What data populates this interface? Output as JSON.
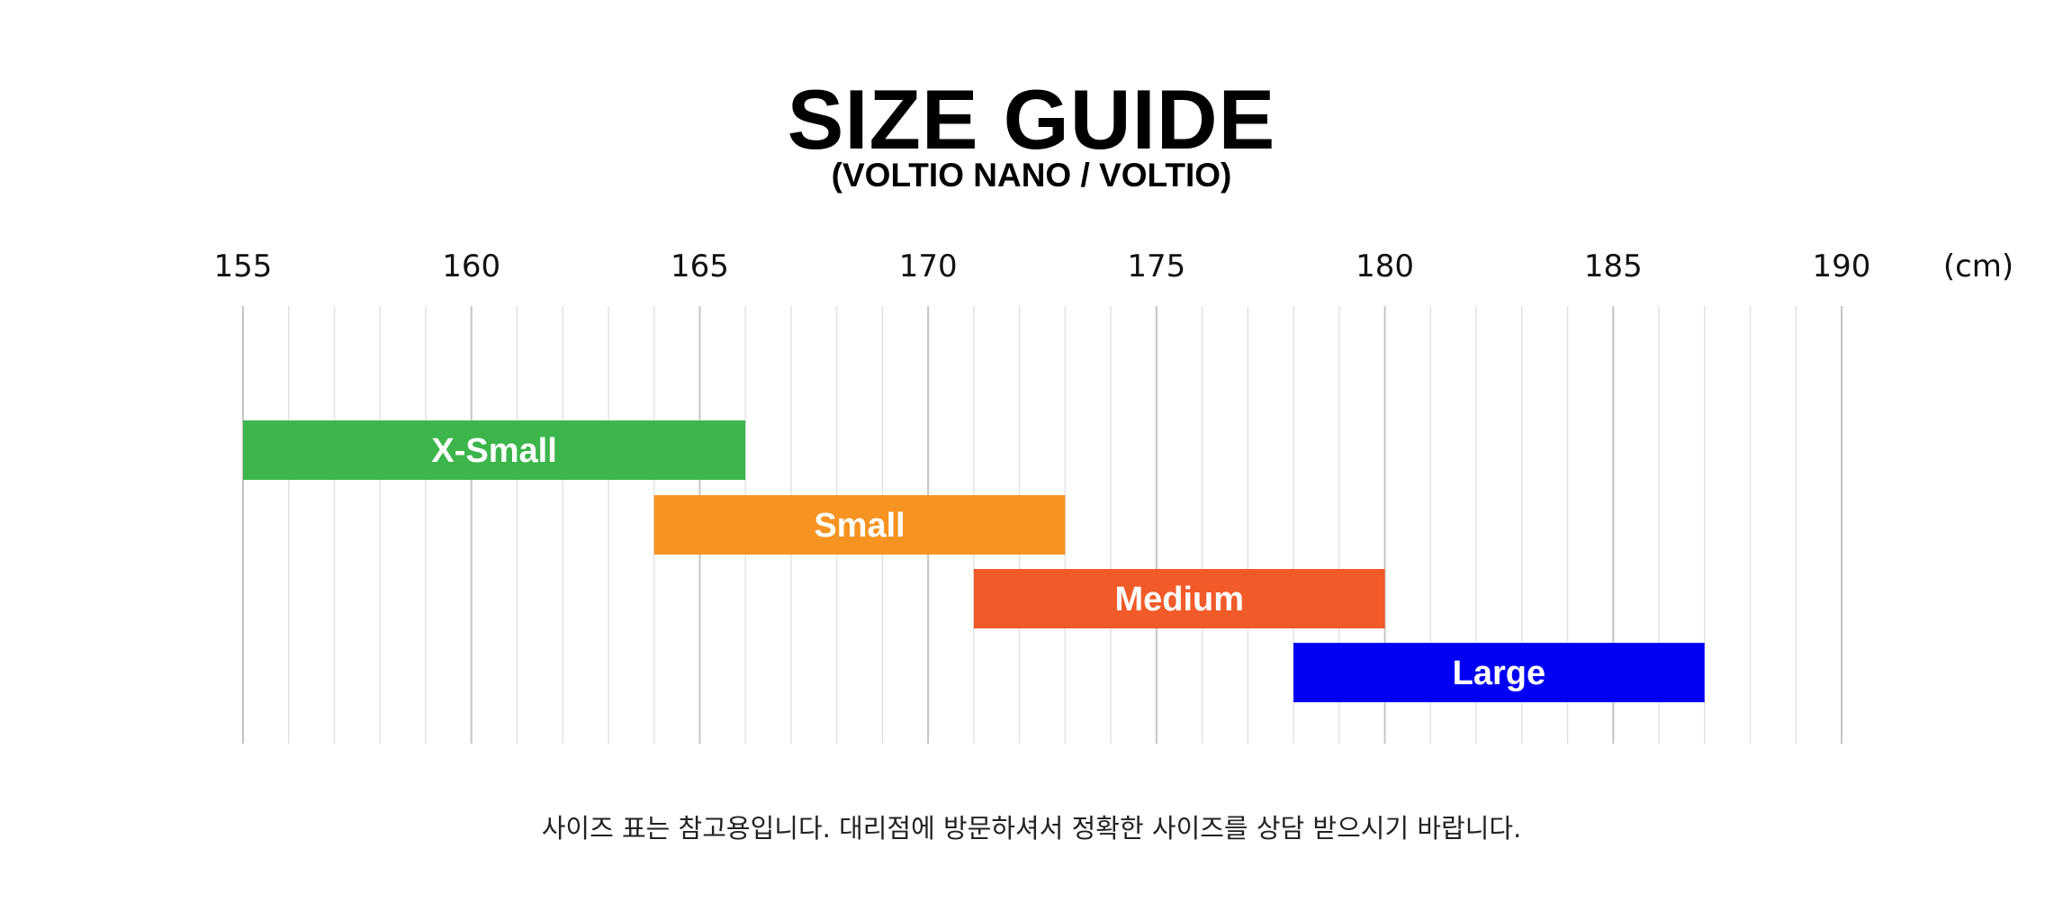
{
  "chart_data": {
    "type": "bar",
    "orientation": "horizontal-range",
    "title": "SIZE GUIDE",
    "subtitle": "(VOLTIO NANO / VOLTIO)",
    "unit": "(cm)",
    "xlim": [
      155,
      190
    ],
    "x_ticks": [
      "155",
      "160",
      "165",
      "170",
      "175",
      "180",
      "185",
      "190"
    ],
    "minor_grid_step": 1,
    "grid": true,
    "series": [
      {
        "name": "X-Small",
        "start": 155,
        "end": 166,
        "color": "#3cb64c"
      },
      {
        "name": "Small",
        "start": 164,
        "end": 173,
        "color": "#f69321"
      },
      {
        "name": "Medium",
        "start": 171,
        "end": 180,
        "color": "#f15a29"
      },
      {
        "name": "Large",
        "start": 178,
        "end": 187,
        "color": "#0000f5"
      }
    ]
  },
  "footnote": "사이즈 표는 참고용입니다. 대리점에 방문하셔서 정확한 사이즈를 상담 받으시기 바랍니다."
}
